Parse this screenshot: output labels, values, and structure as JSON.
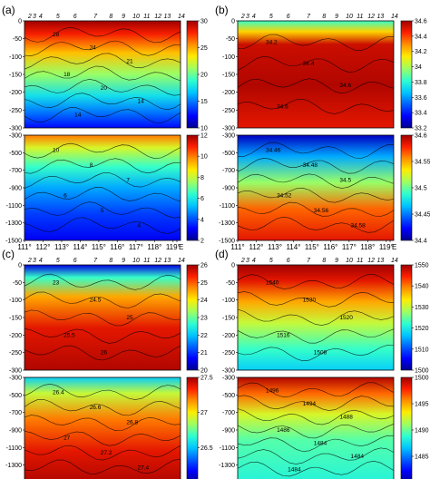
{
  "figure": {
    "x_tick_labels": [
      "111°",
      "112°",
      "113°",
      "114°",
      "115°",
      "116°",
      "117°",
      "118°",
      "119°",
      "E"
    ],
    "station_labels": [
      "2",
      "3",
      "4",
      "5",
      "6",
      "7",
      "8",
      "9",
      "10",
      "11",
      "12",
      "13",
      "14"
    ],
    "colors": {
      "axis": "#000000",
      "contour": "#000000",
      "background": "#ffffff"
    },
    "colormap": [
      "#00008f",
      "#0000ff",
      "#0060ff",
      "#00c8ff",
      "#30ffcf",
      "#9fff60",
      "#ffef00",
      "#ff9000",
      "#ff2000",
      "#a00000"
    ]
  },
  "chart_data": [
    {
      "type": "heatmap",
      "panel_label": "(a)",
      "upper": {
        "y_ticks": [
          "0",
          "-50",
          "-100",
          "-150",
          "-200",
          "-250",
          "-300"
        ],
        "ylim": [
          -300,
          0
        ],
        "colorbar_ticks": [
          "30",
          "25",
          "20",
          "15",
          "10"
        ],
        "clim": [
          10,
          30
        ],
        "contour_labels": [
          "28",
          "24",
          "21",
          "18",
          "20",
          "14",
          "14"
        ]
      },
      "lower": {
        "y_ticks": [
          "-300",
          "-500",
          "-700",
          "-900",
          "-1100",
          "-1300",
          "-1500"
        ],
        "ylim": [
          -1500,
          -300
        ],
        "colorbar_ticks": [
          "12",
          "10",
          "8",
          "6",
          "4",
          "2"
        ],
        "clim": [
          2,
          12
        ],
        "contour_labels": [
          "10",
          "8",
          "7",
          "6",
          "5",
          "4"
        ]
      }
    },
    {
      "type": "heatmap",
      "panel_label": "(b)",
      "upper": {
        "y_ticks": [
          "0",
          "-50",
          "-100",
          "-150",
          "-200",
          "-250",
          "-300"
        ],
        "ylim": [
          -300,
          0
        ],
        "colorbar_ticks": [
          "34.6",
          "34.4",
          "34.2",
          "34",
          "33.8",
          "33.6",
          "33.4",
          "33.2"
        ],
        "clim": [
          33.2,
          34.6
        ],
        "contour_labels": [
          "34.2",
          "34.4",
          "34.6",
          "34.6"
        ]
      },
      "lower": {
        "y_ticks": [
          "-300",
          "-500",
          "-700",
          "-900",
          "-1100",
          "-1300",
          "-1500"
        ],
        "ylim": [
          -1500,
          -300
        ],
        "colorbar_ticks": [
          "34.6",
          "34.55",
          "34.5",
          "34.45",
          "34.4"
        ],
        "clim": [
          34.4,
          34.6
        ],
        "contour_labels": [
          "34.46",
          "34.48",
          "34.5",
          "34.52",
          "34.56",
          "34.58"
        ]
      }
    },
    {
      "type": "heatmap",
      "panel_label": "(c)",
      "upper": {
        "y_ticks": [
          "0",
          "-50",
          "-100",
          "-150",
          "-200",
          "-250",
          "-300"
        ],
        "ylim": [
          -300,
          0
        ],
        "colorbar_ticks": [
          "26",
          "25",
          "24",
          "23",
          "22",
          "21",
          "20"
        ],
        "clim": [
          20,
          26
        ],
        "contour_labels": [
          "23",
          "24.5",
          "25",
          "25.5",
          "26"
        ]
      },
      "lower": {
        "y_ticks": [
          "-300",
          "-500",
          "-700",
          "-900",
          "-1100",
          "-1300",
          "-1500"
        ],
        "ylim": [
          -1500,
          -300
        ],
        "colorbar_ticks": [
          "27.5",
          "27",
          "26.5",
          "26"
        ],
        "clim": [
          26,
          27.6
        ],
        "contour_labels": [
          "26.4",
          "26.6",
          "26.8",
          "27",
          "27.2",
          "27.4"
        ]
      }
    },
    {
      "type": "heatmap",
      "panel_label": "(d)",
      "upper": {
        "y_ticks": [
          "0",
          "-50",
          "-100",
          "-150",
          "-200",
          "-250",
          "-300"
        ],
        "ylim": [
          -300,
          0
        ],
        "colorbar_ticks": [
          "1550",
          "1540",
          "1530",
          "1520",
          "1510",
          "1500"
        ],
        "clim": [
          1500,
          1550
        ],
        "contour_labels": [
          "1540",
          "1530",
          "1520",
          "1516",
          "1508"
        ]
      },
      "lower": {
        "y_ticks": [
          "-300",
          "-500",
          "-700",
          "-900",
          "-1100",
          "-1300",
          "-1500"
        ],
        "ylim": [
          -1500,
          -300
        ],
        "colorbar_ticks": [
          "1500",
          "1495",
          "1490",
          "1485",
          "1480"
        ],
        "clim": [
          1480,
          1500
        ],
        "contour_labels": [
          "1496",
          "1494",
          "1488",
          "1486",
          "1484",
          "1484",
          "1484"
        ]
      }
    }
  ]
}
